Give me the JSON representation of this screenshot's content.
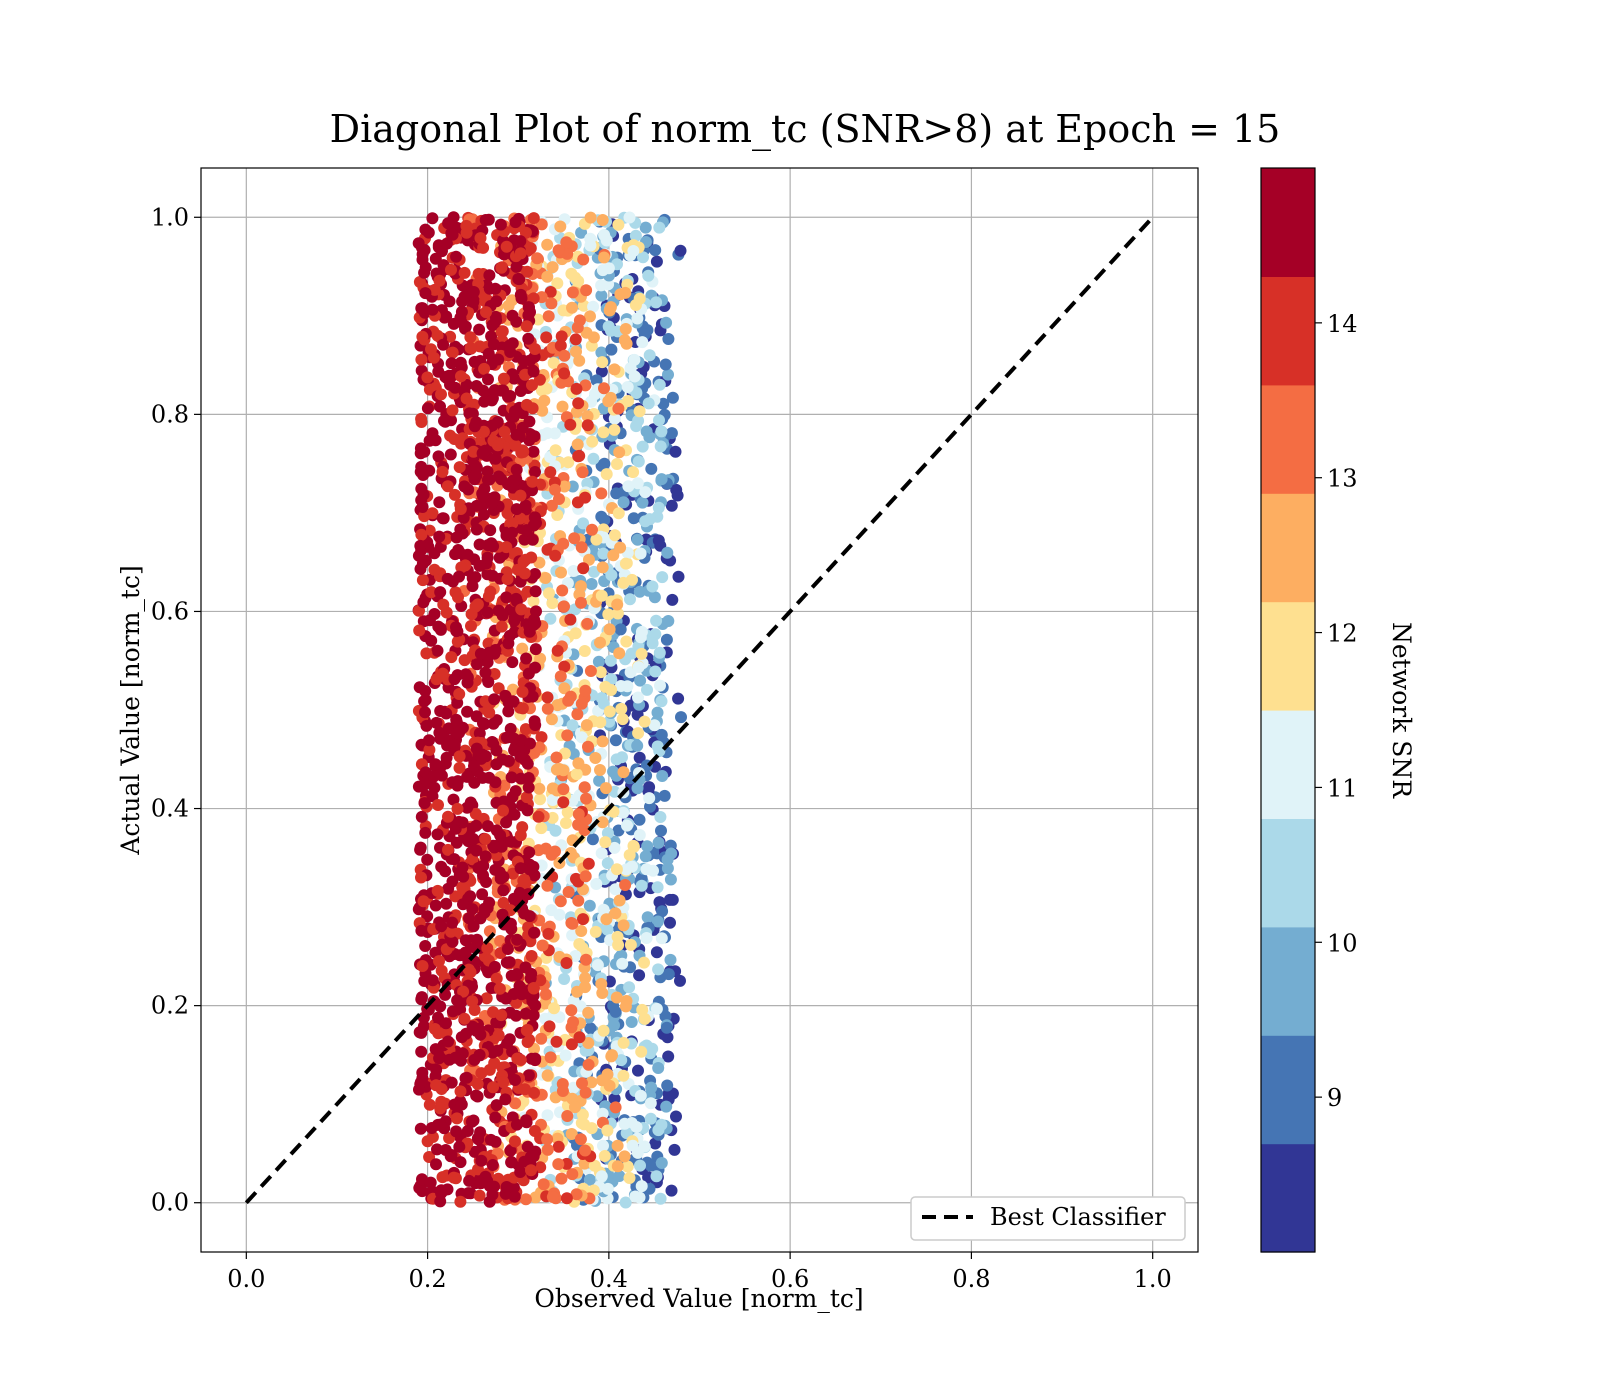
{
  "chart_data": {
    "type": "scatter",
    "title": "Diagonal Plot of norm_tc (SNR>8) at Epoch = 15",
    "xlabel": "Observed Value [norm_tc]",
    "ylabel": "Actual Value [norm_tc]",
    "xlim": [
      -0.05,
      1.05
    ],
    "ylim": [
      -0.05,
      1.05
    ],
    "xticks": [
      "0.0",
      "0.2",
      "0.4",
      "0.6",
      "0.8",
      "1.0"
    ],
    "yticks": [
      "0.0",
      "0.2",
      "0.4",
      "0.6",
      "0.8",
      "1.0"
    ],
    "grid": true,
    "legend": {
      "placement": "lower-right",
      "entries": [
        "Best Classifier"
      ]
    },
    "reference_line": {
      "name": "Best Classifier",
      "x": [
        0.0,
        1.0
      ],
      "y": [
        0.0,
        1.0
      ],
      "style": "dashed",
      "color": "#000000"
    },
    "colorbar": {
      "label": "Network SNR",
      "range": [
        8,
        15
      ],
      "ticks": [
        "9",
        "10",
        "11",
        "12",
        "13",
        "14"
      ],
      "colors": [
        "#313695",
        "#4575b4",
        "#74add1",
        "#abd9e9",
        "#e0f3f8",
        "#fee090",
        "#fdae61",
        "#f46d43",
        "#d73027",
        "#a50026"
      ]
    },
    "series": [
      {
        "x_band_by_snr": [
          {
            "snr_range": [
              14,
              15
            ],
            "x_range": [
              0.19,
              0.32
            ]
          },
          {
            "snr_range": [
              13,
              14
            ],
            "x_range": [
              0.24,
              0.38
            ]
          },
          {
            "snr_range": [
              12,
              13
            ],
            "x_range": [
              0.27,
              0.42
            ]
          },
          {
            "snr_range": [
              11,
              12
            ],
            "x_range": [
              0.3,
              0.44
            ]
          },
          {
            "snr_range": [
              10,
              11
            ],
            "x_range": [
              0.33,
              0.46
            ]
          },
          {
            "snr_range": [
              9,
              10
            ],
            "x_range": [
              0.36,
              0.47
            ]
          },
          {
            "snr_range": [
              8,
              9
            ],
            "x_range": [
              0.39,
              0.48
            ]
          }
        ],
        "y_range": [
          0.0,
          1.0
        ]
      }
    ]
  }
}
